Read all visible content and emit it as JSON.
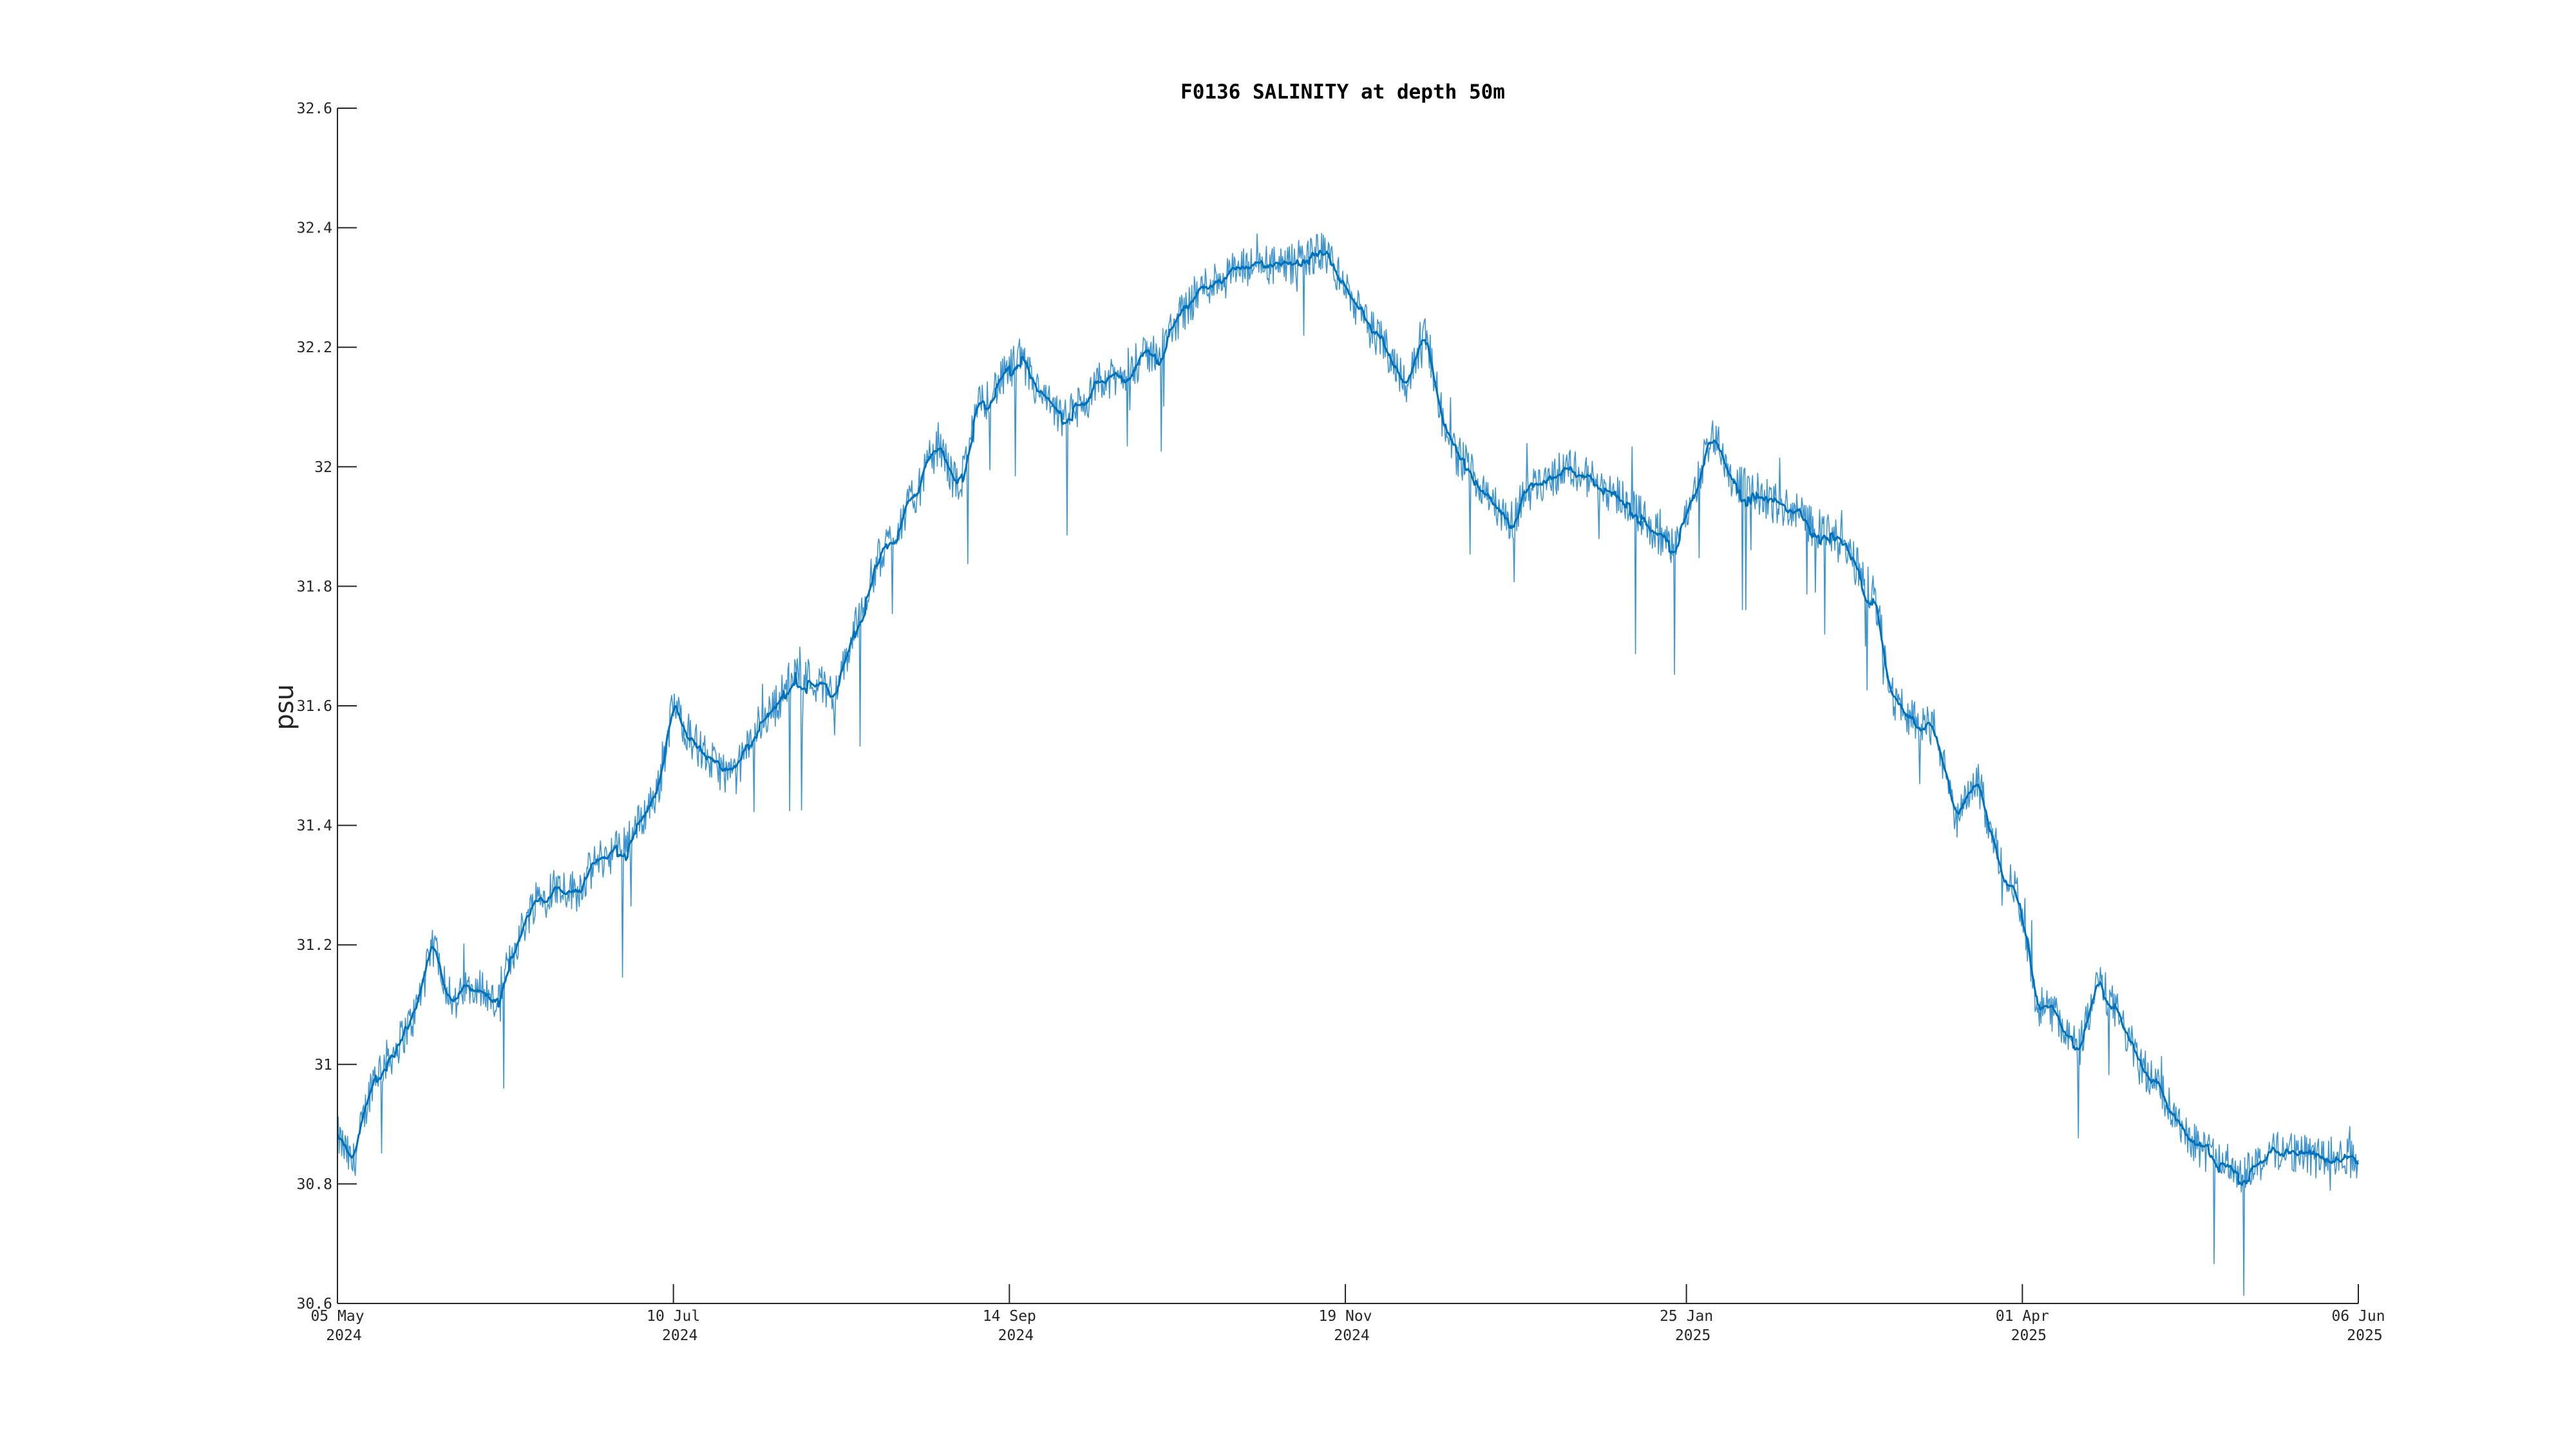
{
  "chart_data": {
    "type": "line",
    "title": "F0136 SALINITY at depth 50m",
    "xlabel": "",
    "ylabel": "psu",
    "x_range": [
      "2024-05-05",
      "2025-06-06"
    ],
    "ylim": [
      30.6,
      32.6
    ],
    "y_ticks": [
      {
        "value": 30.6,
        "label": "30.6"
      },
      {
        "value": 30.8,
        "label": "30.8"
      },
      {
        "value": 31.0,
        "label": "31"
      },
      {
        "value": 31.2,
        "label": "31.2"
      },
      {
        "value": 31.4,
        "label": "31.4"
      },
      {
        "value": 31.6,
        "label": "31.6"
      },
      {
        "value": 31.8,
        "label": "31.8"
      },
      {
        "value": 32.0,
        "label": "32"
      },
      {
        "value": 32.2,
        "label": "32.2"
      },
      {
        "value": 32.4,
        "label": "32.4"
      },
      {
        "value": 32.6,
        "label": "32.6"
      }
    ],
    "x_ticks": [
      {
        "date": "2024-05-05",
        "line1": "05 May",
        "line2": "2024"
      },
      {
        "date": "2024-07-10",
        "line1": "10 Jul",
        "line2": "2024"
      },
      {
        "date": "2024-09-14",
        "line1": "14 Sep",
        "line2": "2024"
      },
      {
        "date": "2024-11-19",
        "line1": "19 Nov",
        "line2": "2024"
      },
      {
        "date": "2025-01-25",
        "line1": "25 Jan",
        "line2": "2025"
      },
      {
        "date": "2025-04-01",
        "line1": "01 Apr",
        "line2": "2025"
      },
      {
        "date": "2025-06-06",
        "line1": "06 Jun",
        "line2": "2025"
      }
    ],
    "grid": false,
    "legend": "none",
    "series_color": "#0072BD",
    "series": [
      {
        "x": [
          "2024-05-05",
          "2024-05-08",
          "2024-05-12",
          "2024-05-16",
          "2024-05-20",
          "2024-05-24",
          "2024-05-28",
          "2024-06-01",
          "2024-06-05",
          "2024-06-09",
          "2024-06-13",
          "2024-06-17",
          "2024-06-21",
          "2024-06-25",
          "2024-06-29",
          "2024-07-03",
          "2024-07-07",
          "2024-07-10",
          "2024-07-14",
          "2024-07-18",
          "2024-07-22",
          "2024-07-26",
          "2024-07-30",
          "2024-08-03",
          "2024-08-07",
          "2024-08-11",
          "2024-08-15",
          "2024-08-19",
          "2024-08-23",
          "2024-08-27",
          "2024-08-31",
          "2024-09-04",
          "2024-09-08",
          "2024-09-12",
          "2024-09-16",
          "2024-09-20",
          "2024-09-24",
          "2024-09-28",
          "2024-10-02",
          "2024-10-06",
          "2024-10-10",
          "2024-10-14",
          "2024-10-18",
          "2024-10-22",
          "2024-10-26",
          "2024-10-30",
          "2024-11-03",
          "2024-11-07",
          "2024-11-11",
          "2024-11-15",
          "2024-11-19",
          "2024-11-23",
          "2024-11-27",
          "2024-12-01",
          "2024-12-05",
          "2024-12-09",
          "2024-12-13",
          "2024-12-17",
          "2024-12-21",
          "2024-12-25",
          "2024-12-29",
          "2025-01-02",
          "2025-01-06",
          "2025-01-10",
          "2025-01-14",
          "2025-01-18",
          "2025-01-22",
          "2025-01-26",
          "2025-01-30",
          "2025-02-03",
          "2025-02-07",
          "2025-02-11",
          "2025-02-15",
          "2025-02-19",
          "2025-02-23",
          "2025-02-27",
          "2025-03-03",
          "2025-03-07",
          "2025-03-11",
          "2025-03-15",
          "2025-03-19",
          "2025-03-23",
          "2025-03-27",
          "2025-03-31",
          "2025-04-04",
          "2025-04-08",
          "2025-04-12",
          "2025-04-16",
          "2025-04-20",
          "2025-04-24",
          "2025-04-28",
          "2025-05-02",
          "2025-05-06",
          "2025-05-10",
          "2025-05-14",
          "2025-05-18",
          "2025-05-22",
          "2025-05-26",
          "2025-05-30",
          "2025-06-03",
          "2025-06-06"
        ],
        "y": [
          30.88,
          30.83,
          30.98,
          31.02,
          31.08,
          31.2,
          31.1,
          31.14,
          31.1,
          31.2,
          31.28,
          31.3,
          31.29,
          31.34,
          31.36,
          31.4,
          31.46,
          31.6,
          31.54,
          31.5,
          31.48,
          31.56,
          31.6,
          31.66,
          31.64,
          31.62,
          31.74,
          31.84,
          31.9,
          31.96,
          32.04,
          31.96,
          32.1,
          32.14,
          32.18,
          32.12,
          32.08,
          32.1,
          32.14,
          32.15,
          32.18,
          32.2,
          32.26,
          32.3,
          32.32,
          32.33,
          32.34,
          32.33,
          32.35,
          32.36,
          32.3,
          32.24,
          32.2,
          32.14,
          32.22,
          32.04,
          32.0,
          31.96,
          31.9,
          31.96,
          31.98,
          32.0,
          31.98,
          31.96,
          31.94,
          31.9,
          31.86,
          31.94,
          32.06,
          31.98,
          31.96,
          31.94,
          31.93,
          31.9,
          31.88,
          31.84,
          31.78,
          31.6,
          31.58,
          31.56,
          31.4,
          31.48,
          31.36,
          31.28,
          31.1,
          31.08,
          31.02,
          31.14,
          31.08,
          31.0,
          30.96,
          30.9,
          30.86,
          30.84,
          30.82,
          30.84,
          30.86,
          30.85,
          30.84,
          30.85,
          30.84
        ]
      }
    ]
  }
}
